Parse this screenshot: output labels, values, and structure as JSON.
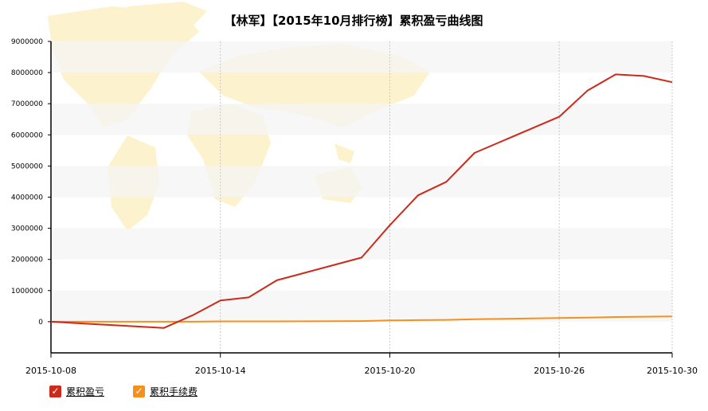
{
  "chart_data": {
    "type": "line",
    "title": "【林军】【2015年10月排行榜】累积盈亏曲线图",
    "xlabel": "",
    "ylabel": "",
    "x": [
      "2015-10-08",
      "2015-10-09",
      "2015-10-12",
      "2015-10-13",
      "2015-10-14",
      "2015-10-15",
      "2015-10-16",
      "2015-10-19",
      "2015-10-20",
      "2015-10-21",
      "2015-10-22",
      "2015-10-23",
      "2015-10-26",
      "2015-10-27",
      "2015-10-28",
      "2015-10-29",
      "2015-10-30"
    ],
    "x_ticks": [
      "2015-10-08",
      "2015-10-14",
      "2015-10-20",
      "2015-10-26",
      "2015-10-30"
    ],
    "y_ticks": [
      "9000000",
      "8000000",
      "7000000",
      "6000000",
      "5000000",
      "4000000",
      "3000000",
      "2000000",
      "1000000",
      "0"
    ],
    "ylim": [
      -1000000,
      9000000
    ],
    "grid": "horizontal bands, dotted vertical lines",
    "series": [
      {
        "name": "累积盈亏",
        "color": "#cc2a1a",
        "values": [
          0,
          -50000,
          -200000,
          200000,
          680000,
          780000,
          1330000,
          2060000,
          3100000,
          4060000,
          4490000,
          5420000,
          6580000,
          7420000,
          7940000,
          7890000,
          7690000
        ]
      },
      {
        "name": "累积手续费",
        "color": "#f5901e",
        "values": [
          0,
          0,
          0,
          0,
          10000,
          10000,
          10000,
          20000,
          40000,
          50000,
          60000,
          80000,
          120000,
          130000,
          150000,
          160000,
          170000
        ]
      }
    ],
    "legend_position": "bottom-left"
  }
}
